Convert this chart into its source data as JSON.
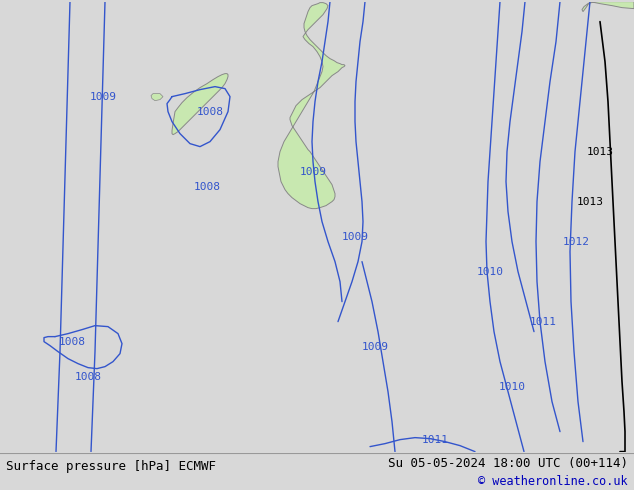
{
  "bg_color": "#d8d8d8",
  "map_bg_color": "#d8d8e0",
  "land_color": "#c8e8b0",
  "land_border_color": "#888888",
  "contour_blue": "#3355cc",
  "contour_black": "#000000",
  "contour_lw": 1.0,
  "bottom_bar_color": "#d0d0d0",
  "bottom_text_left": "Surface pressure [hPa] ECMWF",
  "bottom_text_right": "Su 05-05-2024 18:00 UTC (00+114)",
  "bottom_text_right2": "© weatheronline.co.uk",
  "figsize": [
    6.34,
    4.9
  ],
  "dpi": 100
}
